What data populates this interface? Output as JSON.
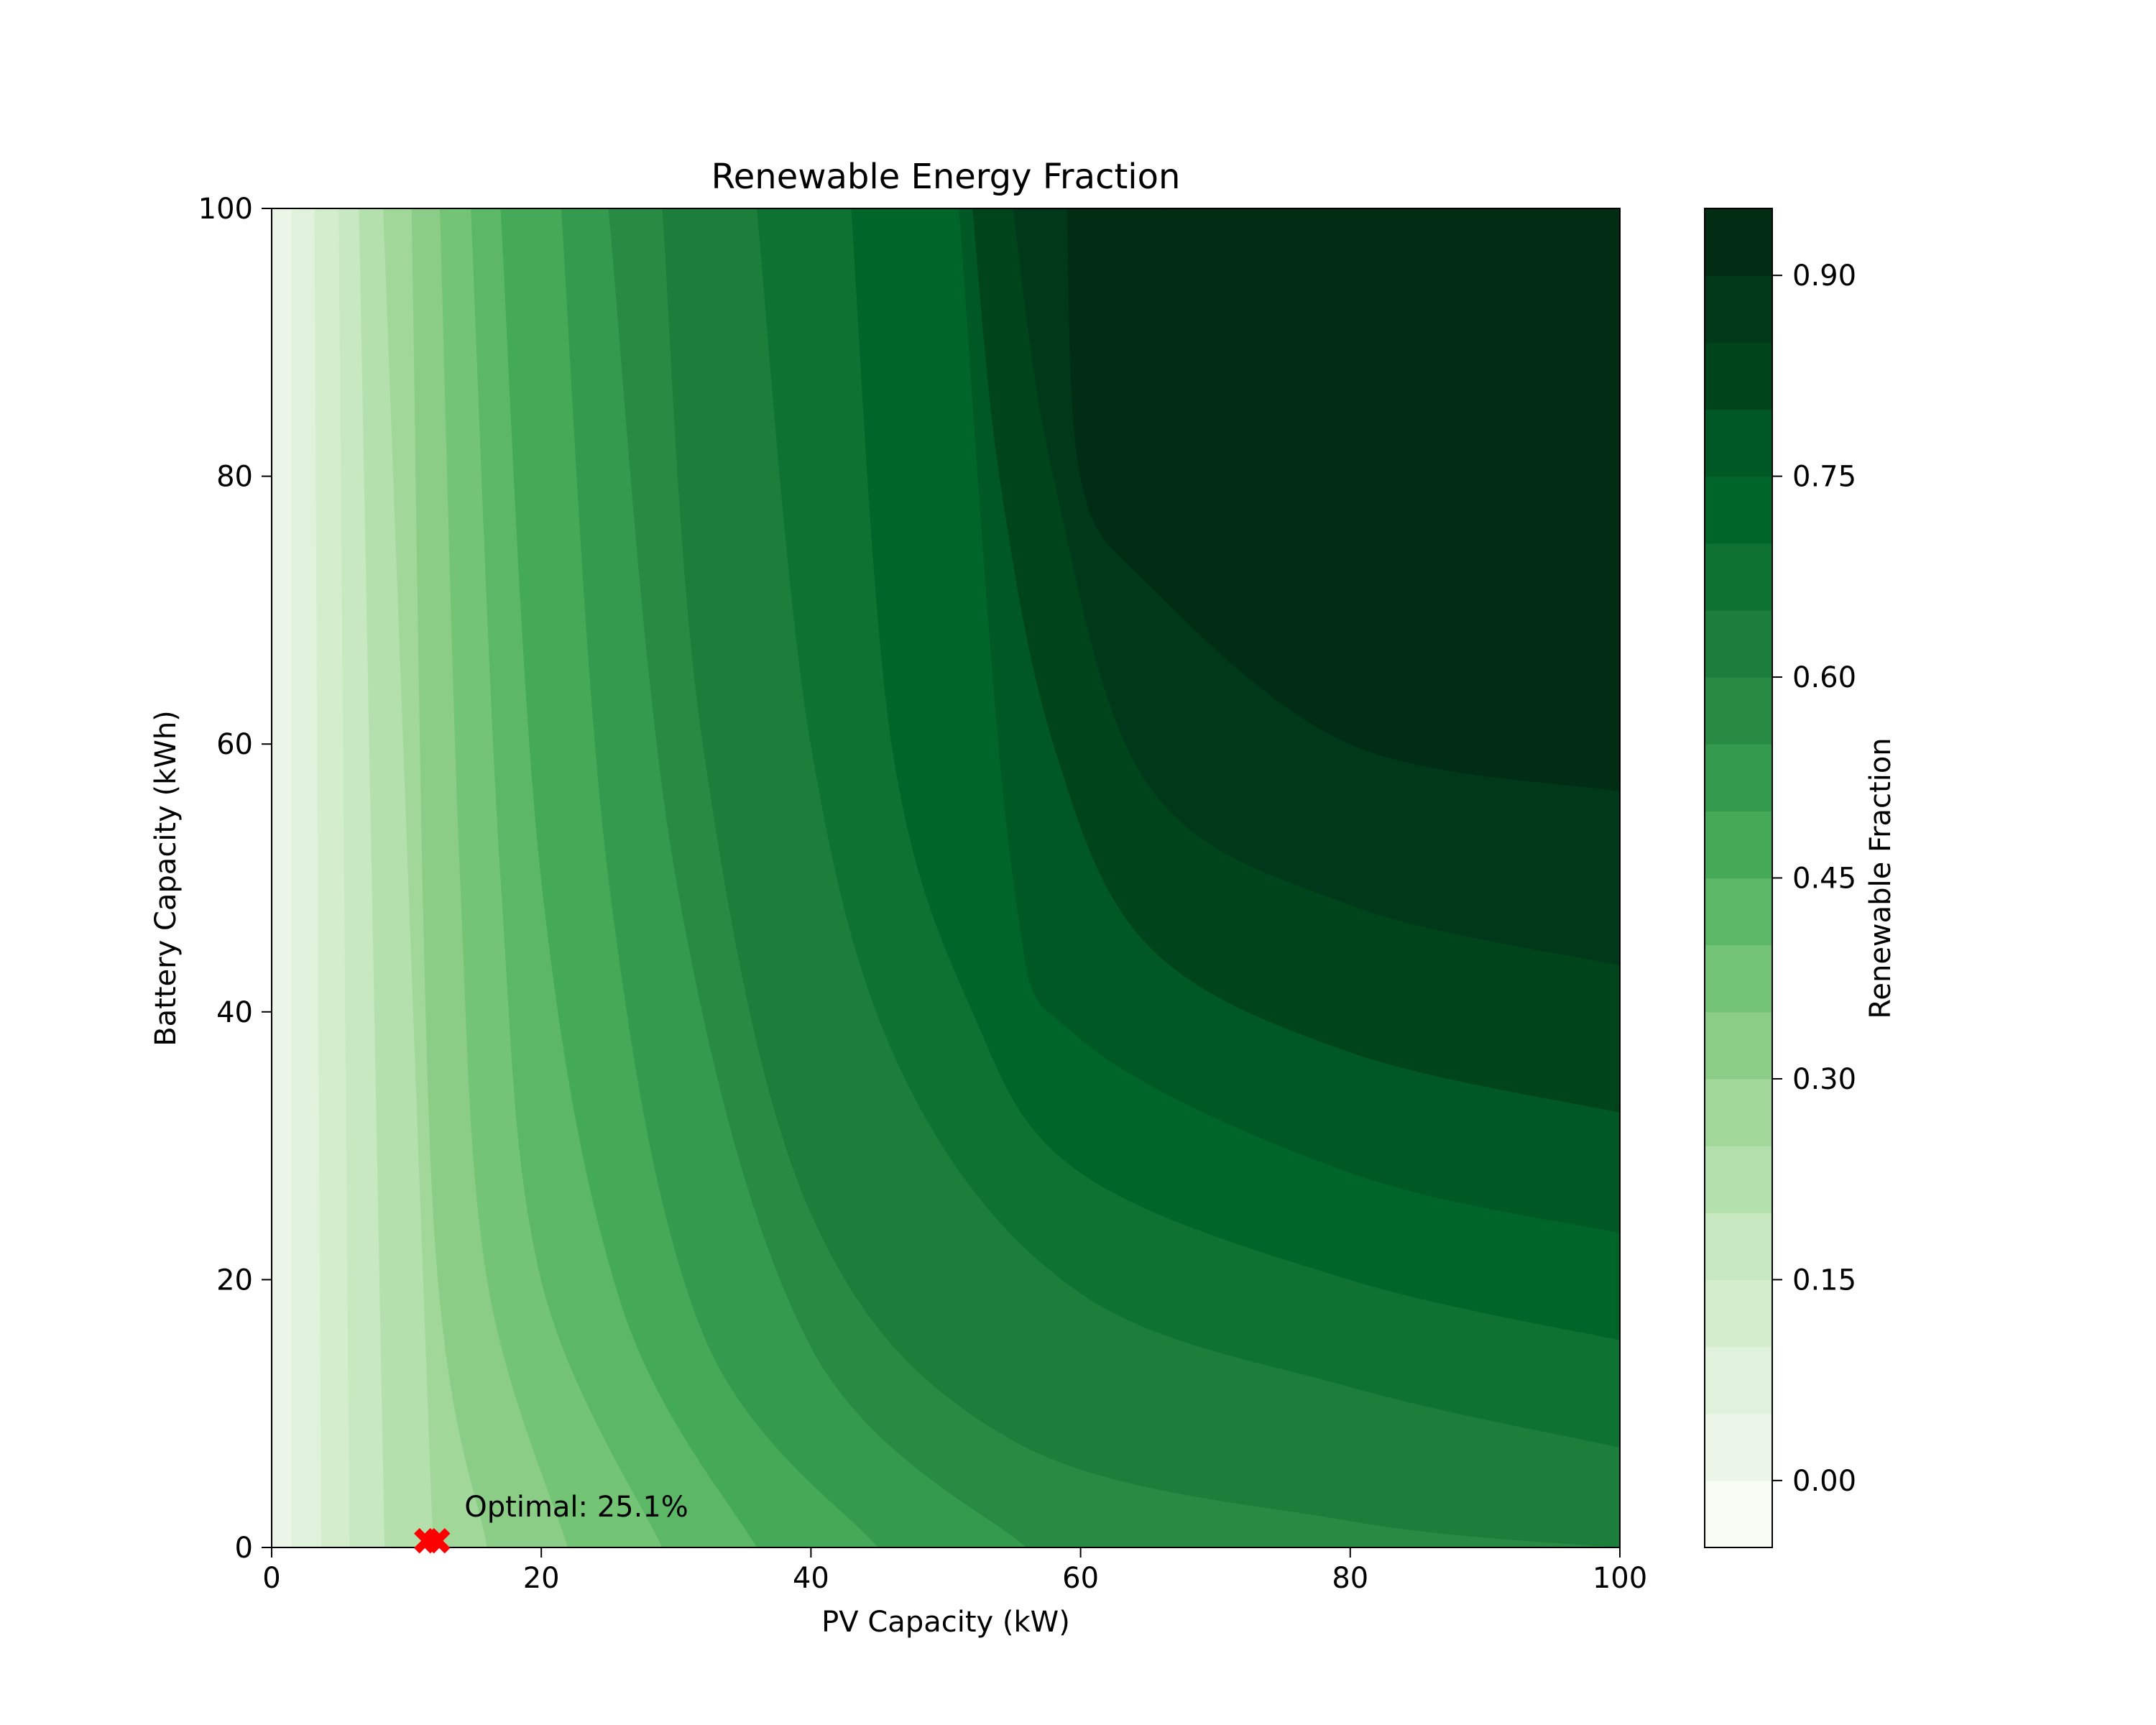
{
  "chart_data": {
    "type": "contourf",
    "title": "Renewable Energy Fraction",
    "xlabel": "PV Capacity (kW)",
    "ylabel": "Battery Capacity (kWh)",
    "xlim": [
      0,
      100
    ],
    "ylim": [
      0,
      100
    ],
    "xticks": [
      0,
      20,
      40,
      60,
      80,
      100
    ],
    "yticks": [
      0,
      20,
      40,
      60,
      80,
      100
    ],
    "grid": false,
    "colormap": "Greens",
    "colorbar": {
      "label": "Renewable Fraction",
      "range": [
        -0.05,
        0.95
      ],
      "levels": [
        -0.05,
        0.0,
        0.05,
        0.1,
        0.15,
        0.2,
        0.25,
        0.3,
        0.35,
        0.4,
        0.45,
        0.5,
        0.55,
        0.6,
        0.65,
        0.7,
        0.75,
        0.8,
        0.85,
        0.9,
        0.95
      ],
      "ticks": [
        0.0,
        0.15,
        0.3,
        0.45,
        0.6,
        0.75,
        0.9
      ],
      "tick_labels": [
        "0.00",
        "0.15",
        "0.30",
        "0.45",
        "0.60",
        "0.75",
        "0.90"
      ],
      "colors": [
        "#f6fbf4",
        "#ebf6e8",
        "#e0f2db",
        "#d4eecd",
        "#c7e8c1",
        "#b4e0ad",
        "#a1d89a",
        "#8bcd86",
        "#74c476",
        "#5cb766",
        "#45aa58",
        "#349a4d",
        "#288b43",
        "#1b7e3b",
        "#0e7233",
        "#006529",
        "#005824",
        "#00441b",
        "#00381a",
        "#002d14"
      ]
    },
    "contour_boundaries": [
      {
        "level": 0.05,
        "points": [
          [
            1.5,
            0
          ],
          [
            1.5,
            100
          ]
        ]
      },
      {
        "level": 0.1,
        "points": [
          [
            3.7,
            0
          ],
          [
            3.2,
            100
          ]
        ]
      },
      {
        "level": 0.15,
        "points": [
          [
            5.8,
            0
          ],
          [
            5.0,
            100
          ]
        ]
      },
      {
        "level": 0.2,
        "points": [
          [
            8.4,
            0
          ],
          [
            6.5,
            100
          ]
        ]
      },
      {
        "level": 0.25,
        "points": [
          [
            12,
            0
          ],
          [
            8.3,
            100
          ]
        ]
      },
      {
        "level": 0.3,
        "points": [
          [
            16,
            0
          ],
          [
            12,
            25
          ],
          [
            10.4,
            100
          ]
        ]
      },
      {
        "level": 0.35,
        "points": [
          [
            22,
            0
          ],
          [
            16,
            20
          ],
          [
            14,
            50
          ],
          [
            12.5,
            100
          ]
        ]
      },
      {
        "level": 0.4,
        "points": [
          [
            29,
            0
          ],
          [
            20,
            20
          ],
          [
            17,
            50
          ],
          [
            14.8,
            100
          ]
        ]
      },
      {
        "level": 0.45,
        "points": [
          [
            36,
            0
          ],
          [
            26,
            18
          ],
          [
            20,
            50
          ],
          [
            17,
            100
          ]
        ]
      },
      {
        "level": 0.5,
        "points": [
          [
            45,
            0
          ],
          [
            32,
            16
          ],
          [
            25,
            50
          ],
          [
            21.5,
            100
          ]
        ]
      },
      {
        "level": 0.55,
        "points": [
          [
            56,
            0
          ],
          [
            40,
            15
          ],
          [
            30,
            50
          ],
          [
            25,
            100
          ]
        ]
      },
      {
        "level": 0.6,
        "points": [
          [
            100,
            0
          ],
          [
            80,
            2
          ],
          [
            55,
            8
          ],
          [
            40,
            25
          ],
          [
            32,
            60
          ],
          [
            29,
            100
          ]
        ]
      },
      {
        "level": 0.65,
        "points": [
          [
            100,
            7.5
          ],
          [
            80,
            12
          ],
          [
            60,
            19
          ],
          [
            47,
            35
          ],
          [
            40,
            60
          ],
          [
            36,
            100
          ]
        ]
      },
      {
        "level": 0.7,
        "points": [
          [
            100,
            15.5
          ],
          [
            80,
            20
          ],
          [
            60,
            28
          ],
          [
            52,
            40
          ],
          [
            46,
            60
          ],
          [
            43,
            100
          ]
        ]
      },
      {
        "level": 0.75,
        "points": [
          [
            100,
            23.5
          ],
          [
            80,
            28
          ],
          [
            60,
            38
          ],
          [
            55,
            50
          ],
          [
            51,
            100
          ]
        ]
      },
      {
        "level": 0.8,
        "points": [
          [
            100,
            32.5
          ],
          [
            80,
            37
          ],
          [
            65,
            45
          ],
          [
            58,
            60
          ],
          [
            54,
            80
          ],
          [
            52,
            100
          ]
        ]
      },
      {
        "level": 0.85,
        "points": [
          [
            100,
            43.5
          ],
          [
            80,
            48
          ],
          [
            65,
            57
          ],
          [
            58,
            80
          ],
          [
            55,
            100
          ]
        ]
      },
      {
        "level": 0.9,
        "points": [
          [
            100,
            56.5
          ],
          [
            80,
            60
          ],
          [
            65,
            72
          ],
          [
            60,
            80
          ],
          [
            59,
            100
          ]
        ]
      },
      {
        "level": 0.95,
        "points": [
          [
            100,
            75
          ],
          [
            80,
            85
          ],
          [
            66,
            100
          ]
        ]
      }
    ],
    "markers": [
      {
        "x": 11.5,
        "y": 0.5,
        "color": "#ff0000",
        "shape": "X"
      },
      {
        "x": 12.3,
        "y": 0.5,
        "color": "#ff0000",
        "shape": "X"
      }
    ],
    "annotations": [
      {
        "text": "Optimal: 25.1%",
        "x": 14.3,
        "y": 2.3
      }
    ]
  }
}
